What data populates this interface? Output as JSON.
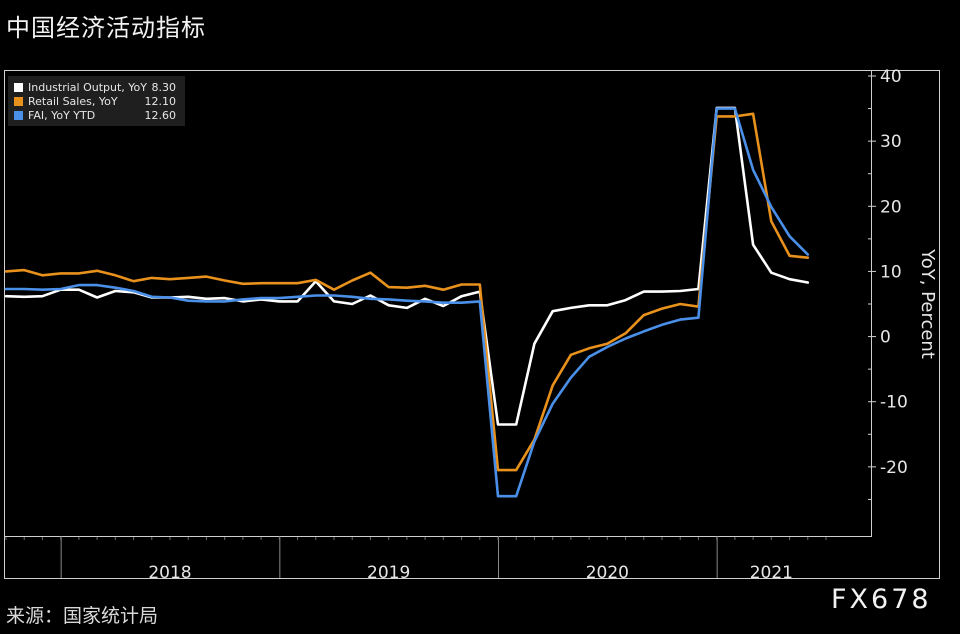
{
  "page": {
    "title": "中国经济活动指标",
    "source": "来源：国家统计局",
    "watermark": "FX678"
  },
  "chart_data": {
    "type": "line",
    "title": "中国经济活动指标",
    "ylabel": "YoY, Percent",
    "ylim": [
      -30,
      40
    ],
    "yticks": [
      40,
      30,
      20,
      10,
      0,
      -10,
      -20
    ],
    "ytick_labels": [
      "40",
      "30",
      "20",
      "10",
      "0",
      "-10",
      "-20"
    ],
    "year_labels": [
      "2018",
      "2019",
      "2020",
      "2021"
    ],
    "x_start": "2017-10",
    "x_end": "2021-07",
    "legend_position": "top-left",
    "x": [
      "2017-10",
      "2017-11",
      "2017-12",
      "2018-01",
      "2018-02",
      "2018-03",
      "2018-04",
      "2018-05",
      "2018-06",
      "2018-07",
      "2018-08",
      "2018-09",
      "2018-10",
      "2018-11",
      "2018-12",
      "2019-01",
      "2019-02",
      "2019-03",
      "2019-04",
      "2019-05",
      "2019-06",
      "2019-07",
      "2019-08",
      "2019-09",
      "2019-10",
      "2019-11",
      "2019-12",
      "2020-01",
      "2020-02",
      "2020-03",
      "2020-04",
      "2020-05",
      "2020-06",
      "2020-07",
      "2020-08",
      "2020-09",
      "2020-10",
      "2020-11",
      "2020-12",
      "2021-01",
      "2021-02",
      "2021-03",
      "2021-04",
      "2021-05",
      "2021-06",
      "2021-07"
    ],
    "series": [
      {
        "name": "Industrial Output, YoY",
        "last_label": "8.30",
        "color": "#ffffff",
        "values": [
          6.2,
          6.1,
          6.2,
          7.2,
          7.2,
          6.0,
          7.0,
          6.8,
          6.0,
          6.0,
          6.1,
          5.8,
          5.9,
          5.4,
          5.7,
          5.4,
          5.4,
          8.5,
          5.4,
          5.0,
          6.3,
          4.8,
          4.4,
          5.8,
          4.7,
          6.2,
          6.9,
          -13.5,
          -13.5,
          -1.1,
          3.9,
          4.4,
          4.8,
          4.8,
          5.6,
          6.9,
          6.9,
          7.0,
          7.3,
          35.1,
          35.1,
          14.1,
          9.8,
          8.8,
          8.3,
          null
        ]
      },
      {
        "name": "Retail Sales, YoY",
        "last_label": "12.10",
        "color": "#e8911c",
        "values": [
          10.0,
          10.2,
          9.4,
          9.7,
          9.7,
          10.1,
          9.4,
          8.5,
          9.0,
          8.8,
          9.0,
          9.2,
          8.6,
          8.1,
          8.2,
          8.2,
          8.2,
          8.7,
          7.2,
          8.6,
          9.8,
          7.6,
          7.5,
          7.8,
          7.2,
          8.0,
          8.0,
          -20.5,
          -20.5,
          -15.8,
          -7.5,
          -2.8,
          -1.8,
          -1.1,
          0.5,
          3.3,
          4.3,
          5.0,
          4.6,
          33.8,
          33.8,
          34.2,
          17.7,
          12.4,
          12.1,
          null
        ]
      },
      {
        "name": "FAI, YoY YTD",
        "last_label": "12.60",
        "color": "#4a8fe8",
        "values": [
          7.3,
          7.3,
          7.2,
          7.3,
          7.9,
          7.9,
          7.5,
          7.0,
          6.1,
          6.0,
          5.5,
          5.4,
          5.4,
          5.7,
          5.9,
          5.9,
          6.1,
          6.3,
          6.3,
          6.1,
          5.8,
          5.7,
          5.5,
          5.4,
          5.2,
          5.2,
          5.4,
          -24.5,
          -24.5,
          -16.1,
          -10.3,
          -6.3,
          -3.1,
          -1.6,
          -0.3,
          0.8,
          1.8,
          2.6,
          2.9,
          35.0,
          35.0,
          25.6,
          19.9,
          15.4,
          12.6,
          null
        ]
      }
    ]
  }
}
